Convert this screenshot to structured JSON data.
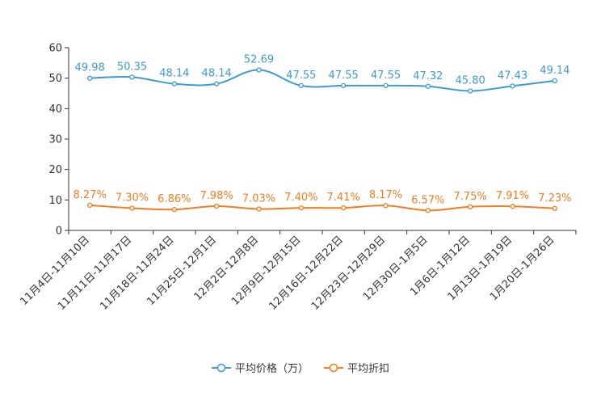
{
  "chart_data": {
    "type": "line",
    "categories": [
      "11月4日-11月10日",
      "11月11日-11月17日",
      "11月18日-11月24日",
      "11月25日-12月1日",
      "12月2日-12月8日",
      "12月9日-12月15日",
      "12月16日-12月22日",
      "12月23日-12月29日",
      "12月30日-1月5日",
      "1月6日-1月12日",
      "1月13日-1月19日",
      "1月20日-1月26日"
    ],
    "ylim": [
      0,
      60
    ],
    "yticks": [
      0,
      10,
      20,
      30,
      40,
      50,
      60
    ],
    "series": [
      {
        "name": "平均价格（万）",
        "color": "#3b9cd0",
        "values": [
          49.98,
          50.35,
          48.14,
          48.14,
          52.69,
          47.55,
          47.55,
          47.55,
          47.32,
          45.8,
          47.43,
          49.14
        ],
        "labels": [
          "49.98",
          "50.35",
          "48.14",
          "48.14",
          "52.69",
          "47.55",
          "47.55",
          "47.55",
          "47.32",
          "45.80",
          "47.43",
          "49.14"
        ]
      },
      {
        "name": "平均折扣",
        "color": "#f57c1f",
        "values": [
          8.27,
          7.3,
          6.86,
          7.98,
          7.03,
          7.4,
          7.41,
          8.17,
          6.57,
          7.75,
          7.91,
          7.23
        ],
        "labels": [
          "8.27%",
          "7.30%",
          "6.86%",
          "7.98%",
          "7.03%",
          "7.40%",
          "7.41%",
          "8.17%",
          "6.57%",
          "7.75%",
          "7.91%",
          "7.23%"
        ]
      }
    ],
    "legend_position": "bottom-center"
  }
}
